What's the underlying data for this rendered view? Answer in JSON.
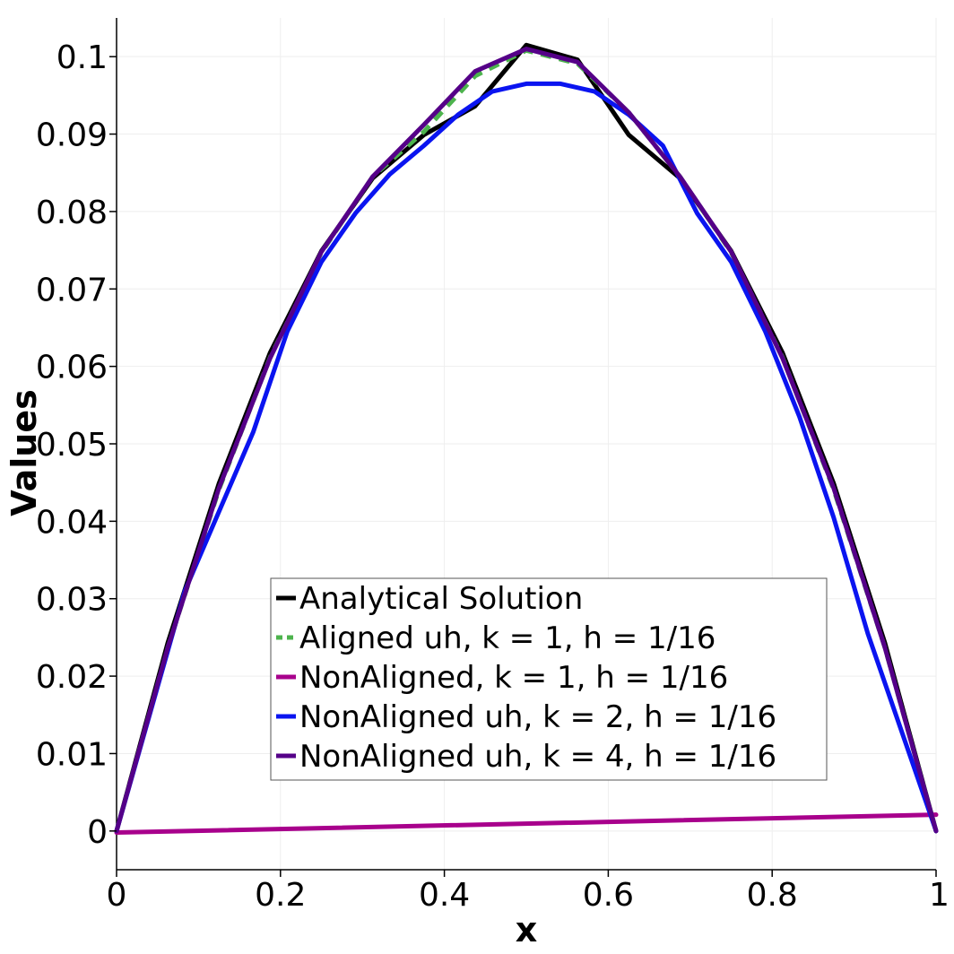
{
  "chart_data": {
    "type": "line",
    "xlabel": "x",
    "ylabel": "Values",
    "xlim": [
      0,
      1
    ],
    "ylim": [
      -0.005,
      0.105
    ],
    "x_ticks": [
      "0",
      "0.2",
      "0.4",
      "0.6",
      "0.8",
      "1"
    ],
    "x_tick_values": [
      0,
      0.2,
      0.4,
      0.6,
      0.8,
      1
    ],
    "y_ticks": [
      "0",
      "0.01",
      "0.02",
      "0.03",
      "0.04",
      "0.05",
      "0.06",
      "0.07",
      "0.08",
      "0.09",
      "0.1"
    ],
    "y_tick_values": [
      0,
      0.01,
      0.02,
      0.03,
      0.04,
      0.05,
      0.06,
      0.07,
      0.08,
      0.09,
      0.1
    ],
    "grid": true,
    "legend_position": "lower-center",
    "series": [
      {
        "name": "Analytical Solution",
        "color": "#000000",
        "style": "solid",
        "x": [
          0,
          0.0625,
          0.125,
          0.1875,
          0.25,
          0.3125,
          0.375,
          0.4375,
          0.5,
          0.5625,
          0.625,
          0.6875,
          0.75,
          0.8125,
          0.875,
          0.9375,
          1
        ],
        "y": [
          0,
          0.0243,
          0.0449,
          0.0618,
          0.0749,
          0.0843,
          0.0899,
          0.0936,
          0.1015,
          0.0996,
          0.0899,
          0.0843,
          0.0749,
          0.0618,
          0.0449,
          0.0243,
          0
        ]
      },
      {
        "name": "Aligned uh,  k = 1,  h = 1/16",
        "color": "#4db34d",
        "style": "dashed",
        "x": [
          0,
          0.0625,
          0.125,
          0.1875,
          0.25,
          0.3125,
          0.375,
          0.4375,
          0.5,
          0.5625,
          0.625,
          0.6875,
          0.75,
          0.8125,
          0.875,
          0.9375,
          1
        ],
        "y": [
          0,
          0.0237,
          0.0441,
          0.0612,
          0.0747,
          0.0845,
          0.0903,
          0.0975,
          0.1008,
          0.0991,
          0.0928,
          0.0845,
          0.0747,
          0.0612,
          0.0441,
          0.0237,
          0
        ]
      },
      {
        "name": "NonAligned,  k = 1,  h = 1/16",
        "color": "#a8008c",
        "style": "solid",
        "x": [
          0,
          1
        ],
        "y": [
          -0.0002,
          0.0021
        ]
      },
      {
        "name": "NonAligned uh, k = 2, h = 1/16",
        "color": "#0a14f0",
        "style": "solid",
        "x": [
          0,
          0.0833,
          0.1667,
          0.2083,
          0.25,
          0.2917,
          0.3333,
          0.375,
          0.4167,
          0.4583,
          0.5,
          0.5417,
          0.5833,
          0.625,
          0.6667,
          0.7083,
          0.75,
          0.7917,
          0.8333,
          0.875,
          0.9167,
          1
        ],
        "y": [
          0,
          0.031,
          0.0515,
          0.0645,
          0.0735,
          0.0798,
          0.0848,
          0.0885,
          0.0925,
          0.0955,
          0.0965,
          0.0965,
          0.0955,
          0.0925,
          0.0885,
          0.0798,
          0.0735,
          0.0645,
          0.0535,
          0.0405,
          0.0255,
          0
        ]
      },
      {
        "name": "NonAligned uh, k = 4,  h = 1/16",
        "color": "#550088",
        "style": "solid",
        "x": [
          0,
          0.0625,
          0.125,
          0.1875,
          0.25,
          0.3125,
          0.375,
          0.4375,
          0.5,
          0.5625,
          0.625,
          0.6875,
          0.75,
          0.8125,
          0.875,
          0.9375,
          1
        ],
        "y": [
          0,
          0.0237,
          0.0443,
          0.0611,
          0.0748,
          0.0845,
          0.0912,
          0.0981,
          0.101,
          0.0993,
          0.0928,
          0.0845,
          0.0748,
          0.0611,
          0.0443,
          0.0237,
          0
        ]
      }
    ]
  }
}
